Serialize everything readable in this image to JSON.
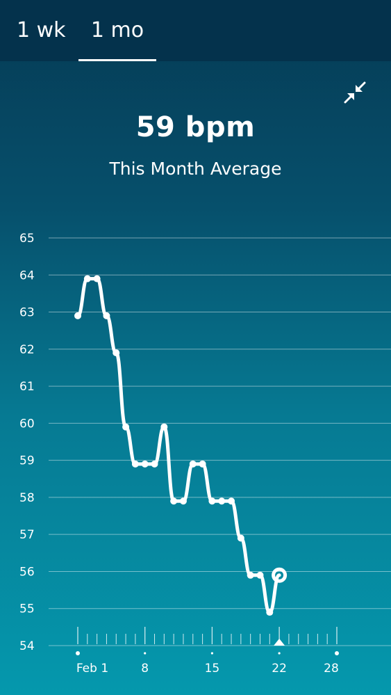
{
  "tabs": [
    {
      "label": "1 wk",
      "selected": false
    },
    {
      "label": "1 mo",
      "selected": true
    }
  ],
  "collapse_icon": "collapse-arrows-icon",
  "summary": {
    "value": "59 bpm",
    "caption": "This Month Average"
  },
  "colors": {
    "line": "#ffffff",
    "topbar": "#04324c",
    "bg_top": "#053a54",
    "bg_bottom": "#0598ad"
  },
  "chart_data": {
    "type": "line",
    "title": "",
    "xlabel": "",
    "ylabel": "",
    "ylim": [
      54,
      65
    ],
    "yticks": [
      54,
      55,
      56,
      57,
      58,
      59,
      60,
      61,
      62,
      63,
      64,
      65
    ],
    "x_range": [
      -2,
      29
    ],
    "x_tick_labels": [
      {
        "x": 1,
        "label": "Feb 1"
      },
      {
        "x": 8,
        "label": "8"
      },
      {
        "x": 15,
        "label": "15"
      },
      {
        "x": 22,
        "label": "22"
      },
      {
        "x": 28,
        "label": "28"
      }
    ],
    "current_day": 22,
    "series": [
      {
        "x": [
          1,
          2,
          3,
          4,
          5,
          6,
          7,
          8,
          9,
          10,
          11,
          12,
          13,
          14,
          15,
          16,
          17,
          18,
          19,
          20,
          21,
          22
        ],
        "values": [
          62.9,
          63.9,
          63.9,
          62.9,
          61.9,
          59.9,
          58.9,
          58.9,
          58.9,
          59.9,
          57.9,
          57.9,
          58.9,
          58.9,
          57.9,
          57.9,
          57.9,
          56.9,
          55.9,
          55.9,
          54.9,
          55.9
        ]
      }
    ]
  }
}
